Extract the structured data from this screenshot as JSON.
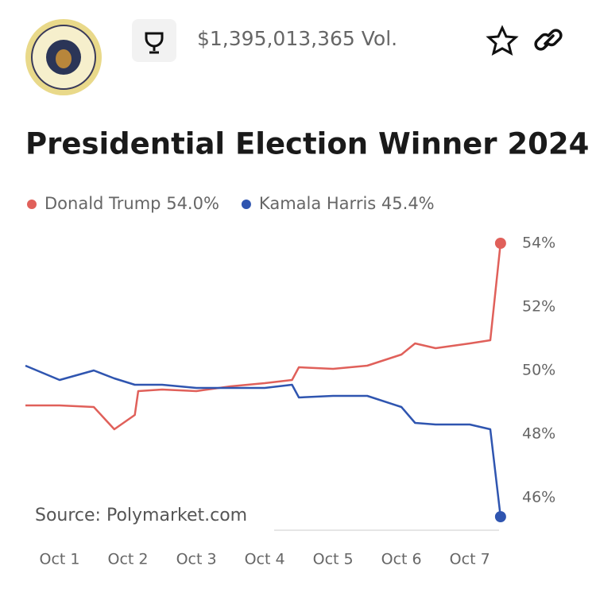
{
  "header": {
    "volume": "$1,395,013,365 Vol."
  },
  "chart_data": {
    "type": "line",
    "title": "Presidential Election Winner 2024",
    "annotation": "Source: Polymarket.com",
    "x": [
      0.5,
      1.0,
      1.5,
      1.8,
      2.1,
      2.15,
      2.5,
      3.0,
      3.5,
      4.0,
      4.4,
      4.5,
      5.0,
      5.5,
      6.0,
      6.2,
      6.5,
      7.0,
      7.3,
      7.45
    ],
    "series": [
      {
        "name": "Donald Trump",
        "current_label": "54.0%",
        "color": "#e0605a",
        "values": [
          48.9,
          48.9,
          48.85,
          48.15,
          48.6,
          49.35,
          49.4,
          49.35,
          49.5,
          49.6,
          49.7,
          50.1,
          50.05,
          50.15,
          50.5,
          50.85,
          50.7,
          50.85,
          50.95,
          54.0
        ]
      },
      {
        "name": "Kamala Harris",
        "current_label": "45.4%",
        "color": "#2f55b0",
        "values": [
          50.15,
          49.7,
          50.0,
          49.75,
          49.55,
          49.55,
          49.55,
          49.45,
          49.45,
          49.45,
          49.55,
          49.15,
          49.2,
          49.2,
          48.85,
          48.35,
          48.3,
          48.3,
          48.15,
          45.4
        ]
      }
    ],
    "xlim": [
      0.5,
      8.3
    ],
    "xticks": [
      {
        "value": 1,
        "label": "Oct 1"
      },
      {
        "value": 2,
        "label": "Oct 2"
      },
      {
        "value": 3,
        "label": "Oct 3"
      },
      {
        "value": 4,
        "label": "Oct 4"
      },
      {
        "value": 5,
        "label": "Oct 5"
      },
      {
        "value": 6,
        "label": "Oct 6"
      },
      {
        "value": 7,
        "label": "Oct 7"
      }
    ],
    "ylim": [
      45,
      55
    ],
    "yticks": [
      {
        "value": 46,
        "label": "46%"
      },
      {
        "value": 48,
        "label": "48%"
      },
      {
        "value": 50,
        "label": "50%"
      },
      {
        "value": 52,
        "label": "52%"
      },
      {
        "value": 54,
        "label": "54%"
      }
    ],
    "grid": false
  }
}
